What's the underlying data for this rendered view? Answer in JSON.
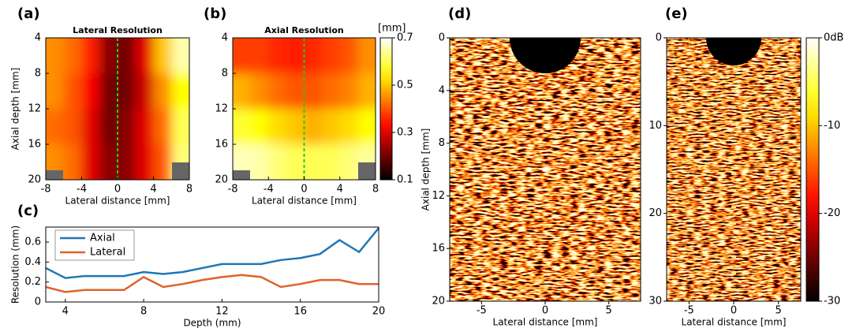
{
  "chart_data": [
    {
      "type": "heatmap",
      "panel": "(a)",
      "title": "Lateral Resolution",
      "xlabel": "Lateral distance [mm]",
      "ylabel": "Axial depth [mm]",
      "xlim": [
        -8,
        8
      ],
      "xticks": [
        -8,
        -4,
        0,
        4,
        8
      ],
      "ylim": [
        20,
        4
      ],
      "yticks": [
        4,
        8,
        12,
        16,
        20
      ],
      "z": [
        [
          0.45,
          0.42,
          0.35,
          0.22,
          0.2,
          0.3,
          0.5,
          0.65
        ],
        [
          0.45,
          0.4,
          0.32,
          0.2,
          0.2,
          0.28,
          0.45,
          0.55
        ],
        [
          0.42,
          0.4,
          0.3,
          0.2,
          0.22,
          0.3,
          0.42,
          0.6
        ],
        [
          0.45,
          0.42,
          0.3,
          0.22,
          0.22,
          0.3,
          0.4,
          0.62
        ]
      ]
    },
    {
      "type": "heatmap",
      "panel": "(b)",
      "title": "Axial Resolution",
      "xlabel": "Lateral distance [mm]",
      "xlim": [
        -8,
        8
      ],
      "xticks": [
        -8,
        -4,
        0,
        4,
        8
      ],
      "ylim": [
        20,
        4
      ],
      "yticks": [
        4,
        8,
        12,
        16,
        20
      ],
      "z": [
        [
          0.38,
          0.38,
          0.36,
          0.35,
          0.36,
          0.38,
          0.4,
          0.45
        ],
        [
          0.48,
          0.45,
          0.42,
          0.4,
          0.4,
          0.42,
          0.44,
          0.48
        ],
        [
          0.58,
          0.55,
          0.52,
          0.5,
          0.48,
          0.5,
          0.52,
          0.55
        ],
        [
          0.66,
          0.65,
          0.62,
          0.6,
          0.6,
          0.6,
          0.62,
          0.64
        ]
      ],
      "colorbar": {
        "label": "[mm]",
        "lim": [
          0.1,
          0.7
        ],
        "ticks": [
          0.1,
          0.3,
          0.5,
          0.7
        ]
      }
    },
    {
      "type": "line",
      "panel": "(c)",
      "xlabel": "Depth (mm)",
      "ylabel": "Resolution (mm)",
      "x": [
        3,
        4,
        5,
        6,
        7,
        8,
        9,
        10,
        11,
        12,
        13,
        14,
        15,
        16,
        17,
        18,
        19,
        20
      ],
      "xlim": [
        3,
        20
      ],
      "xticks": [
        4,
        8,
        12,
        16,
        20
      ],
      "ylim": [
        0,
        0.75
      ],
      "yticks": [
        0,
        0.2,
        0.4,
        0.6
      ],
      "series": [
        {
          "name": "Axial",
          "color": "#1f77b4",
          "values": [
            0.34,
            0.24,
            0.26,
            0.26,
            0.26,
            0.3,
            0.28,
            0.3,
            0.34,
            0.38,
            0.38,
            0.38,
            0.42,
            0.44,
            0.48,
            0.62,
            0.5,
            0.74
          ]
        },
        {
          "name": "Lateral",
          "color": "#e0622a",
          "values": [
            0.15,
            0.1,
            0.12,
            0.12,
            0.12,
            0.25,
            0.15,
            0.18,
            0.22,
            0.25,
            0.27,
            0.25,
            0.15,
            0.18,
            0.22,
            0.22,
            0.18,
            0.18
          ]
        }
      ],
      "legend": "upper left"
    },
    {
      "type": "image",
      "panel": "(d)",
      "xlabel": "Lateral distance [mm]",
      "ylabel": "Axial depth [mm]",
      "xlim": [
        -7.5,
        7.5
      ],
      "xticks": [
        -5,
        0,
        5
      ],
      "ylim": [
        20,
        0
      ],
      "yticks": [
        0,
        4,
        8,
        12,
        16,
        20
      ]
    },
    {
      "type": "image",
      "panel": "(e)",
      "xlabel": "Lateral distance [mm]",
      "xlim": [
        -7.5,
        7.5
      ],
      "xticks": [
        -5,
        0,
        5
      ],
      "ylim": [
        30,
        0
      ],
      "yticks": [
        0,
        10,
        20,
        30
      ],
      "colorbar": {
        "lim": [
          -30,
          0
        ],
        "ticks": [
          {
            "value": 0,
            "label": "0dB"
          },
          -10,
          -20,
          -30
        ]
      }
    }
  ]
}
